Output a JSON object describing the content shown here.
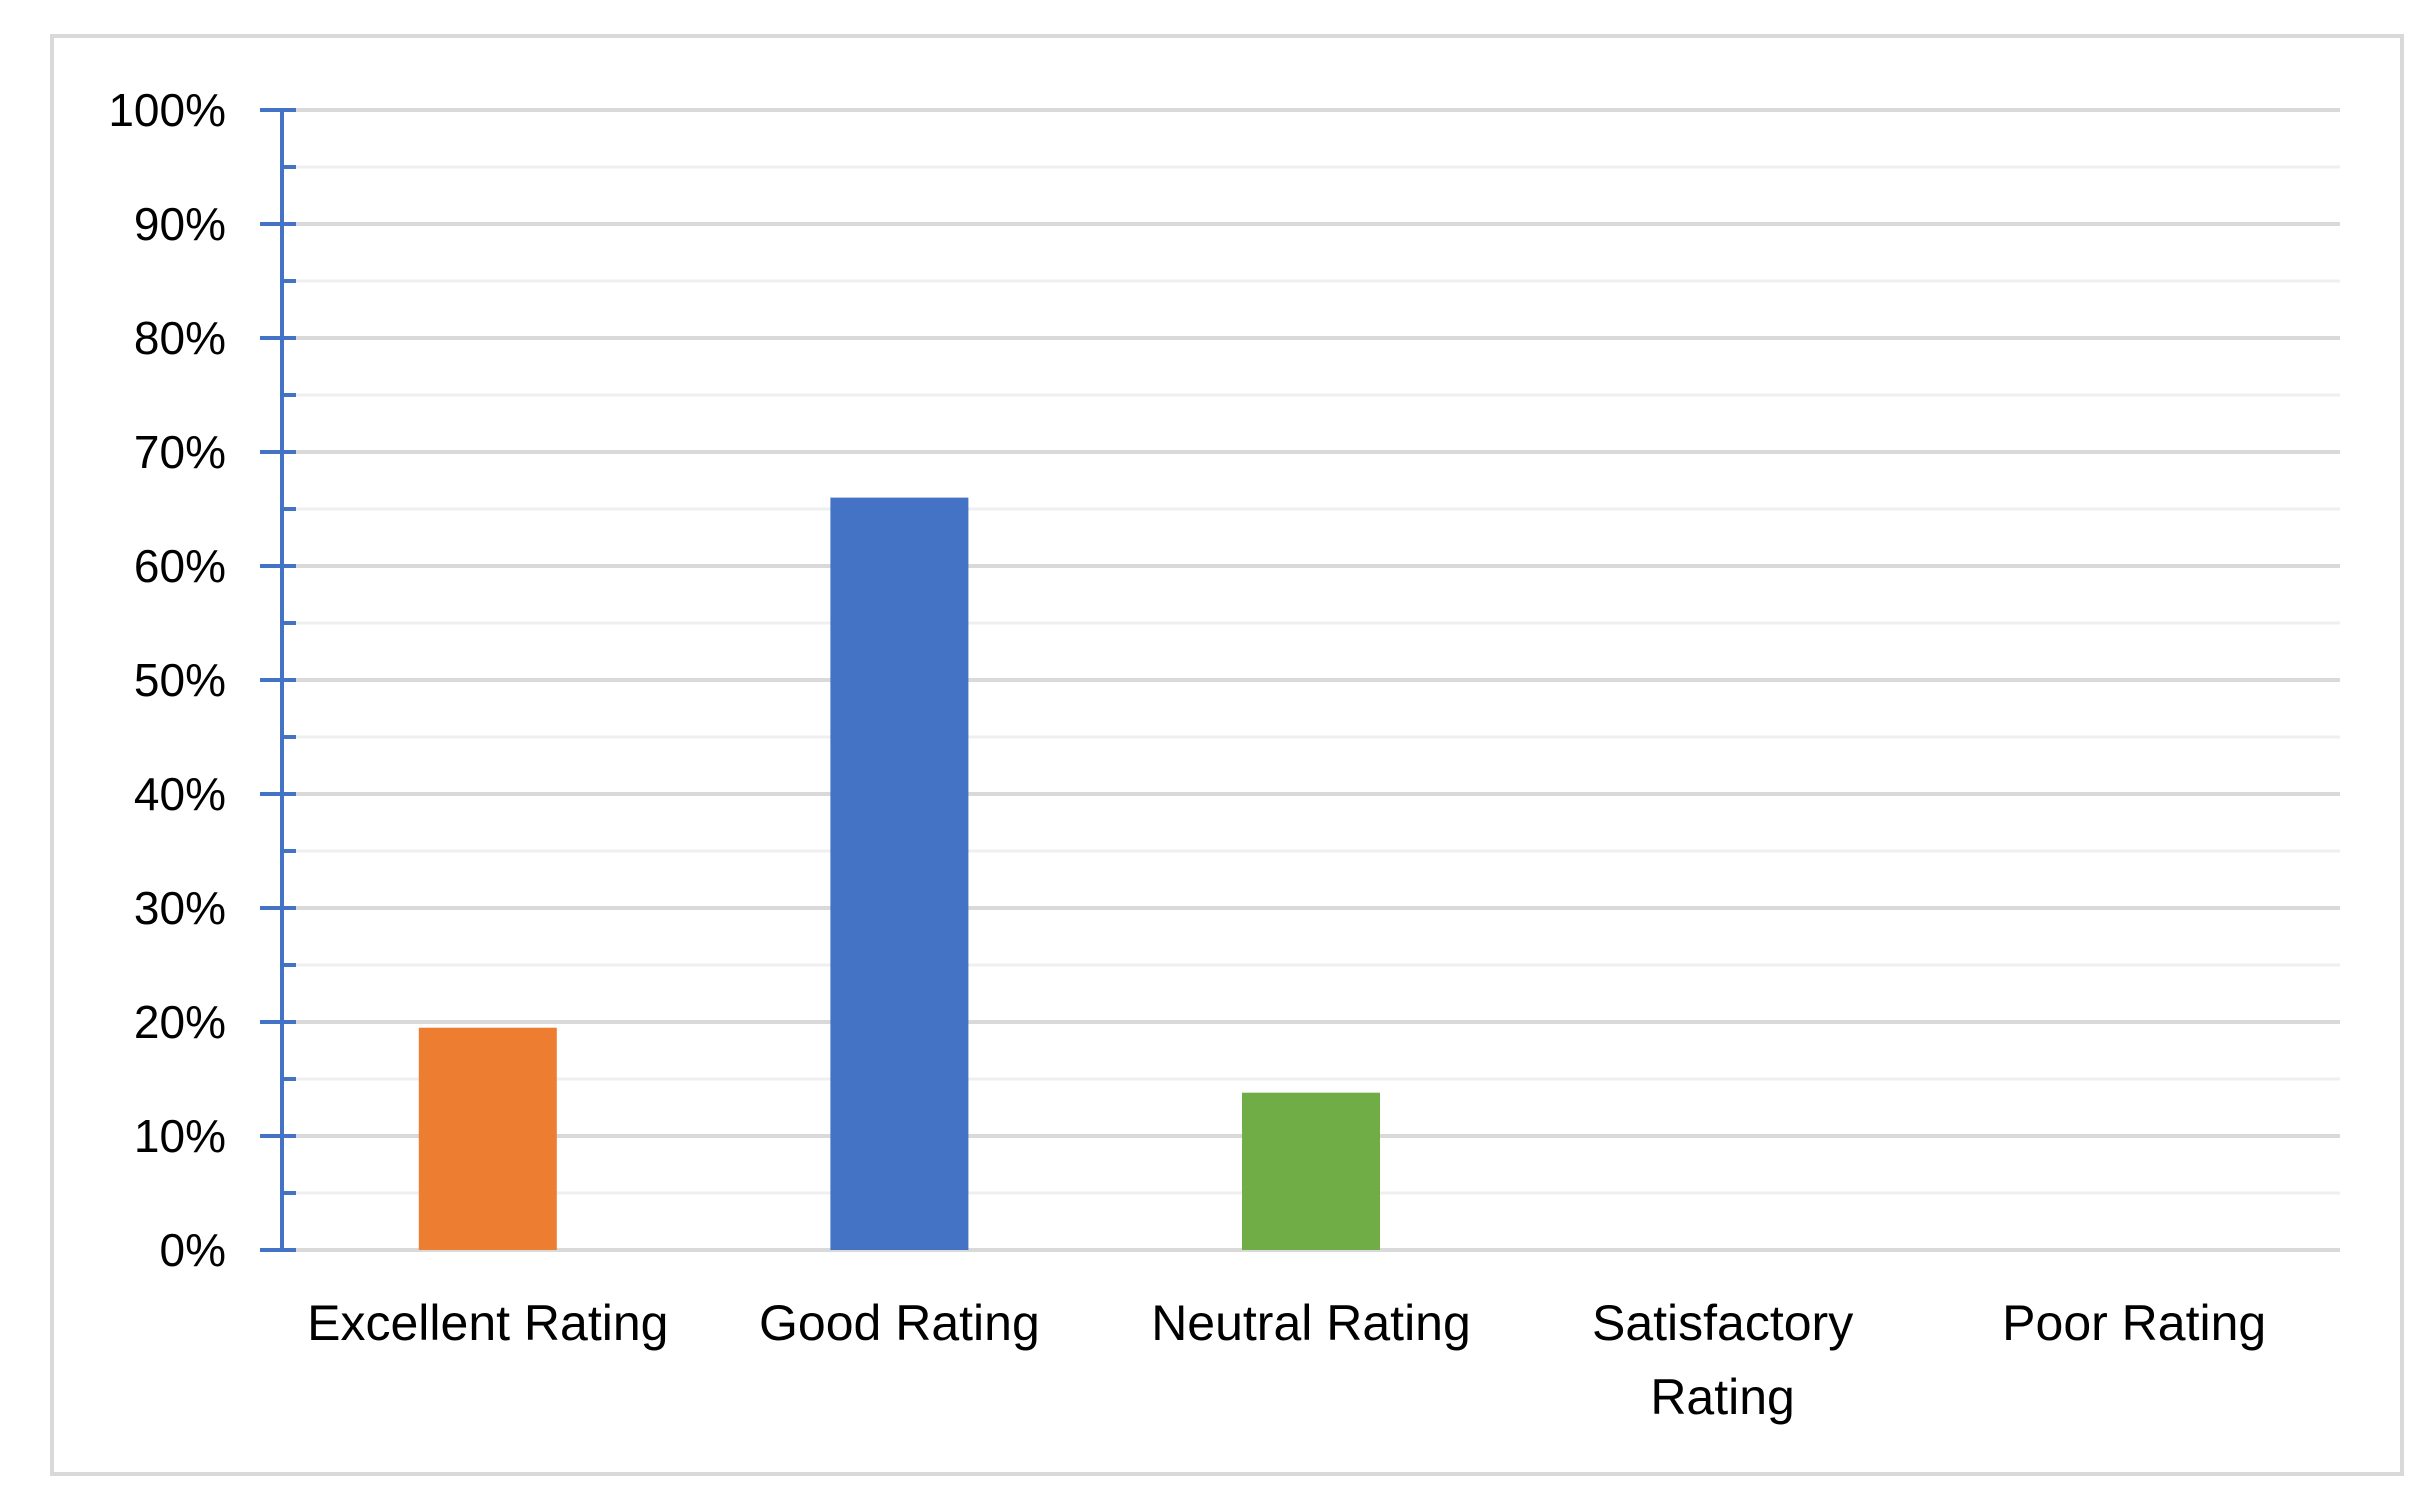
{
  "chart_data": {
    "type": "bar",
    "categories": [
      [
        "Excellent Rating"
      ],
      [
        "Good Rating"
      ],
      [
        "Neutral Rating"
      ],
      [
        "Satisfactory",
        "Rating"
      ],
      [
        "Poor Rating"
      ]
    ],
    "values": [
      19.5,
      66,
      13.8,
      0,
      0
    ],
    "bar_colors": [
      "#ED7D31",
      "#4472C4",
      "#70AD47",
      "#A5A5A5",
      "#FFC000"
    ],
    "title": "",
    "xlabel": "",
    "ylabel": "",
    "ylim": [
      0,
      100
    ],
    "yticks": [
      "0%",
      "10%",
      "20%",
      "30%",
      "40%",
      "50%",
      "60%",
      "70%",
      "80%",
      "90%",
      "100%"
    ],
    "grid": true,
    "legend": "none"
  },
  "colors": {
    "gridline": "#d9d9d9",
    "minor_gridline": "#efefef",
    "axis": "#4472C4",
    "frame": "#d9d9d9"
  }
}
